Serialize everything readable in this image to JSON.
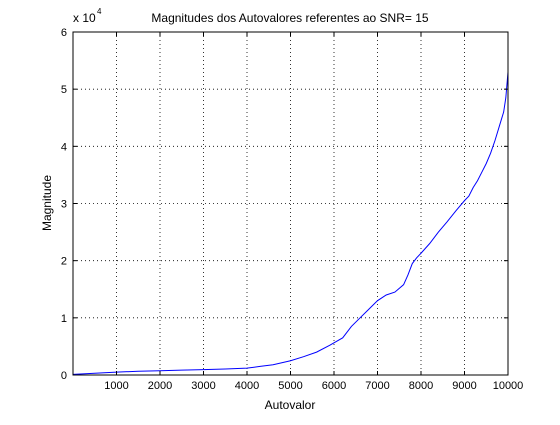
{
  "chart_data": {
    "type": "line",
    "title": "Magnitudes dos Autovalores referentes ao SNR= 15",
    "xlabel": "Autovalor",
    "ylabel": "Magnitude",
    "xlim": [
      0,
      10000
    ],
    "ylim": [
      0,
      60000
    ],
    "y_multiplier_label": "x 10",
    "y_multiplier_exponent": "4",
    "x_ticks": [
      1000,
      2000,
      3000,
      4000,
      5000,
      6000,
      7000,
      8000,
      9000,
      10000
    ],
    "y_ticks": [
      0,
      10000,
      20000,
      30000,
      40000,
      50000,
      60000
    ],
    "y_tick_labels": [
      "0",
      "1",
      "2",
      "3",
      "4",
      "5",
      "6"
    ],
    "grid": true,
    "grid_style": "dotted",
    "series": [
      {
        "color": "#0000ff",
        "x": [
          1,
          500,
          1000,
          1500,
          2000,
          2500,
          3000,
          3500,
          4000,
          4300,
          4600,
          5000,
          5300,
          5600,
          5900,
          6200,
          6400,
          6600,
          6800,
          7000,
          7200,
          7400,
          7600,
          7700,
          7800,
          7900,
          8000,
          8200,
          8400,
          8600,
          8800,
          9000,
          9100,
          9200,
          9300,
          9400,
          9500,
          9600,
          9700,
          9800,
          9900,
          9950,
          10000
        ],
        "y": [
          100,
          300,
          500,
          650,
          750,
          850,
          950,
          1050,
          1200,
          1500,
          1800,
          2500,
          3200,
          4000,
          5200,
          6500,
          8500,
          10000,
          11500,
          13000,
          14000,
          14500,
          15800,
          17500,
          19500,
          20500,
          21300,
          23000,
          25000,
          26800,
          28700,
          30500,
          31300,
          32800,
          34000,
          35500,
          37000,
          38800,
          41000,
          43500,
          46000,
          48500,
          53000
        ]
      }
    ]
  }
}
